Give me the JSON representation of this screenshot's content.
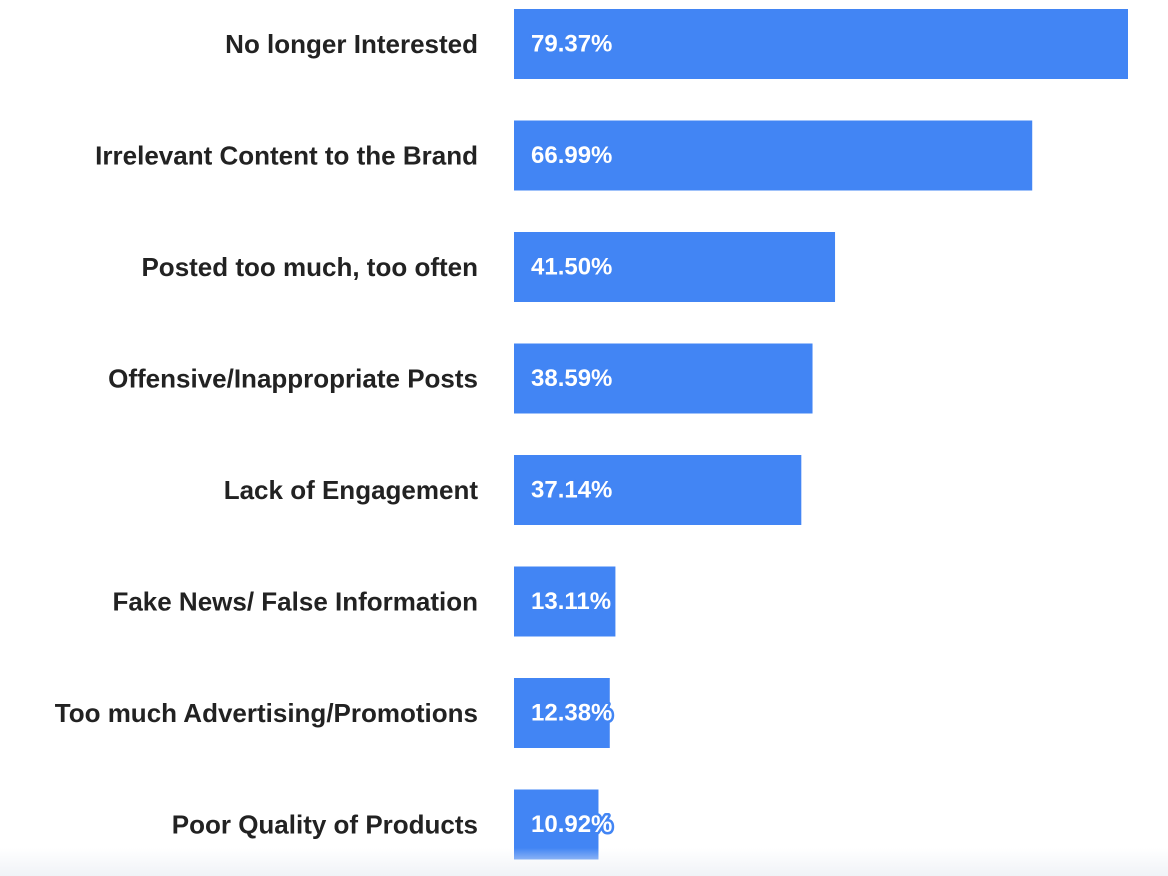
{
  "colors": {
    "bar": "#4285f4",
    "category_text": "#222222",
    "value_text": "#ffffff"
  },
  "chart_data": {
    "type": "bar",
    "orientation": "horizontal",
    "title": "",
    "xlabel": "",
    "ylabel": "",
    "categories": [
      "No longer Interested",
      "Irrelevant Content to the Brand",
      "Posted too much, too often",
      "Offensive/Inappropriate Posts",
      "Lack of Engagement",
      "Fake News/ False Information",
      "Too much Advertising/Promotions",
      "Poor Quality of Products"
    ],
    "values": [
      79.37,
      66.99,
      41.5,
      38.59,
      37.14,
      13.11,
      12.38,
      10.92
    ],
    "value_labels": [
      "79.37%",
      "66.99%",
      "41.50%",
      "38.59%",
      "37.14%",
      "13.11%",
      "12.38%",
      "10.92%"
    ],
    "xlim": [
      0,
      79.37
    ],
    "grid": false,
    "legend": "none"
  }
}
